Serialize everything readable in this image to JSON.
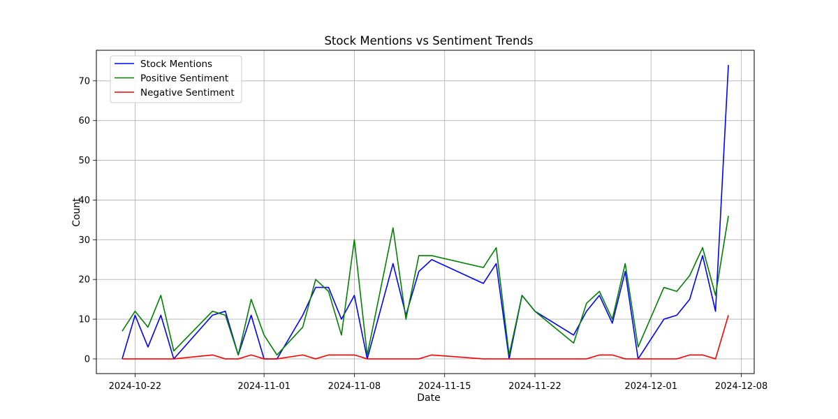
{
  "chart_data": {
    "type": "line",
    "title": "Stock Mentions vs Sentiment Trends",
    "xlabel": "Date",
    "ylabel": "Count",
    "xlim": [
      "2024-10-19",
      "2024-12-09"
    ],
    "ylim": [
      -3.7,
      77.7
    ],
    "x_ticks": [
      "2024-10-22",
      "2024-11-01",
      "2024-11-08",
      "2024-11-15",
      "2024-11-22",
      "2024-12-01",
      "2024-12-08"
    ],
    "y_ticks": [
      0,
      10,
      20,
      30,
      40,
      50,
      60,
      70
    ],
    "grid": true,
    "legend_position": "top-left",
    "series": [
      {
        "name": "Stock Mentions",
        "color": "#0000ff",
        "points": [
          [
            "2024-10-21",
            0
          ],
          [
            "2024-10-22",
            11
          ],
          [
            "2024-10-23",
            3
          ],
          [
            "2024-10-24",
            11
          ],
          [
            "2024-10-25",
            0
          ],
          [
            "2024-10-28",
            11
          ],
          [
            "2024-10-29",
            12
          ],
          [
            "2024-10-30",
            1
          ],
          [
            "2024-10-31",
            11
          ],
          [
            "2024-11-01",
            0
          ],
          [
            "2024-11-02",
            0
          ],
          [
            "2024-11-04",
            11
          ],
          [
            "2024-11-05",
            18
          ],
          [
            "2024-11-06",
            18
          ],
          [
            "2024-11-07",
            10
          ],
          [
            "2024-11-08",
            16
          ],
          [
            "2024-11-09",
            0
          ],
          [
            "2024-11-11",
            24
          ],
          [
            "2024-11-12",
            11
          ],
          [
            "2024-11-13",
            22
          ],
          [
            "2024-11-14",
            25
          ],
          [
            "2024-11-18",
            19
          ],
          [
            "2024-11-19",
            24
          ],
          [
            "2024-11-20",
            0
          ],
          [
            "2024-11-21",
            16
          ],
          [
            "2024-11-22",
            12
          ],
          [
            "2024-11-25",
            6
          ],
          [
            "2024-11-26",
            12
          ],
          [
            "2024-11-27",
            16
          ],
          [
            "2024-11-28",
            9
          ],
          [
            "2024-11-29",
            22
          ],
          [
            "2024-11-30",
            0
          ],
          [
            "2024-12-02",
            10
          ],
          [
            "2024-12-03",
            11
          ],
          [
            "2024-12-04",
            15
          ],
          [
            "2024-12-05",
            26
          ],
          [
            "2024-12-06",
            12
          ],
          [
            "2024-12-07",
            74
          ]
        ]
      },
      {
        "name": "Positive Sentiment",
        "color": "#008000",
        "points": [
          [
            "2024-10-21",
            7
          ],
          [
            "2024-10-22",
            12
          ],
          [
            "2024-10-23",
            8
          ],
          [
            "2024-10-24",
            16
          ],
          [
            "2024-10-25",
            2
          ],
          [
            "2024-10-28",
            12
          ],
          [
            "2024-10-29",
            11
          ],
          [
            "2024-10-30",
            1
          ],
          [
            "2024-10-31",
            15
          ],
          [
            "2024-11-01",
            6
          ],
          [
            "2024-11-02",
            1
          ],
          [
            "2024-11-04",
            8
          ],
          [
            "2024-11-05",
            20
          ],
          [
            "2024-11-06",
            17
          ],
          [
            "2024-11-07",
            6
          ],
          [
            "2024-11-08",
            30
          ],
          [
            "2024-11-09",
            1
          ],
          [
            "2024-11-11",
            33
          ],
          [
            "2024-11-12",
            10
          ],
          [
            "2024-11-13",
            26
          ],
          [
            "2024-11-14",
            26
          ],
          [
            "2024-11-18",
            23
          ],
          [
            "2024-11-19",
            28
          ],
          [
            "2024-11-20",
            1
          ],
          [
            "2024-11-21",
            16
          ],
          [
            "2024-11-22",
            12
          ],
          [
            "2024-11-25",
            4
          ],
          [
            "2024-11-26",
            14
          ],
          [
            "2024-11-27",
            17
          ],
          [
            "2024-11-28",
            10
          ],
          [
            "2024-11-29",
            24
          ],
          [
            "2024-11-30",
            3
          ],
          [
            "2024-12-02",
            18
          ],
          [
            "2024-12-03",
            17
          ],
          [
            "2024-12-04",
            21
          ],
          [
            "2024-12-05",
            28
          ],
          [
            "2024-12-06",
            16
          ],
          [
            "2024-12-07",
            36
          ]
        ]
      },
      {
        "name": "Negative Sentiment",
        "color": "#ff0000",
        "points": [
          [
            "2024-10-21",
            0
          ],
          [
            "2024-10-22",
            0
          ],
          [
            "2024-10-23",
            0
          ],
          [
            "2024-10-24",
            0
          ],
          [
            "2024-10-25",
            0
          ],
          [
            "2024-10-28",
            1
          ],
          [
            "2024-10-29",
            0
          ],
          [
            "2024-10-30",
            0
          ],
          [
            "2024-10-31",
            1
          ],
          [
            "2024-11-01",
            0
          ],
          [
            "2024-11-02",
            0
          ],
          [
            "2024-11-04",
            1
          ],
          [
            "2024-11-05",
            0
          ],
          [
            "2024-11-06",
            1
          ],
          [
            "2024-11-07",
            1
          ],
          [
            "2024-11-08",
            1
          ],
          [
            "2024-11-09",
            0
          ],
          [
            "2024-11-11",
            0
          ],
          [
            "2024-11-12",
            0
          ],
          [
            "2024-11-13",
            0
          ],
          [
            "2024-11-14",
            1
          ],
          [
            "2024-11-18",
            0
          ],
          [
            "2024-11-19",
            0
          ],
          [
            "2024-11-20",
            0
          ],
          [
            "2024-11-21",
            0
          ],
          [
            "2024-11-22",
            0
          ],
          [
            "2024-11-25",
            0
          ],
          [
            "2024-11-26",
            0
          ],
          [
            "2024-11-27",
            1
          ],
          [
            "2024-11-28",
            1
          ],
          [
            "2024-11-29",
            0
          ],
          [
            "2024-11-30",
            0
          ],
          [
            "2024-12-02",
            0
          ],
          [
            "2024-12-03",
            0
          ],
          [
            "2024-12-04",
            1
          ],
          [
            "2024-12-05",
            1
          ],
          [
            "2024-12-06",
            0
          ],
          [
            "2024-12-07",
            11
          ]
        ]
      }
    ]
  }
}
